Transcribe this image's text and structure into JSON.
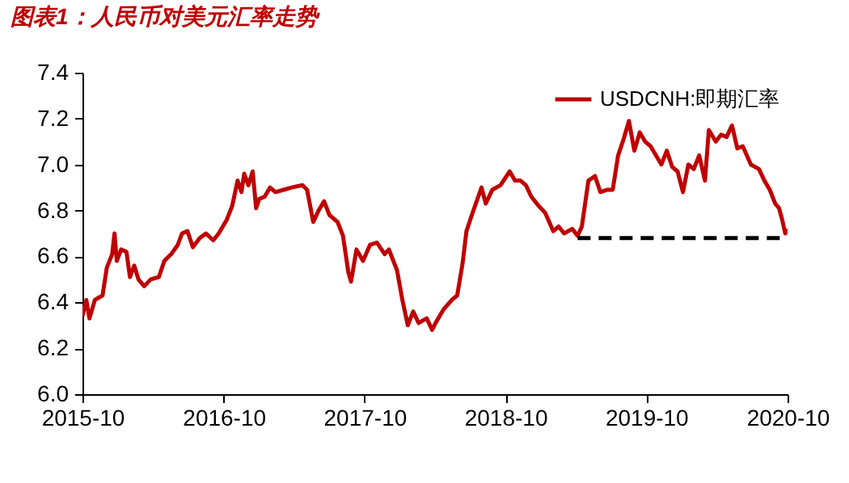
{
  "chart_data": {
    "type": "line",
    "title": "图表1：人民币对美元汇率走势",
    "x": [
      "2015-10-01",
      "2015-10-11",
      "2015-10-19",
      "2015-11-02",
      "2015-11-22",
      "2015-12-03",
      "2015-12-17",
      "2015-12-23",
      "2015-12-29",
      "2016-01-09",
      "2016-01-23",
      "2016-02-01",
      "2016-02-12",
      "2016-02-23",
      "2016-03-09",
      "2016-03-26",
      "2016-04-16",
      "2016-04-30",
      "2016-05-18",
      "2016-06-04",
      "2016-06-15",
      "2016-06-29",
      "2016-07-13",
      "2016-07-31",
      "2016-08-16",
      "2016-09-04",
      "2016-09-18",
      "2016-10-09",
      "2016-10-23",
      "2016-11-06",
      "2016-11-16",
      "2016-11-23",
      "2016-12-04",
      "2016-12-15",
      "2016-12-24",
      "2017-01-01",
      "2017-01-15",
      "2017-01-29",
      "2017-02-12",
      "2017-03-05",
      "2017-03-26",
      "2017-04-23",
      "2017-05-05",
      "2017-05-21",
      "2017-06-04",
      "2017-06-18",
      "2017-07-02",
      "2017-07-23",
      "2017-08-06",
      "2017-08-20",
      "2017-08-27",
      "2017-09-10",
      "2017-09-27",
      "2017-10-15",
      "2017-11-02",
      "2017-11-22",
      "2017-12-03",
      "2017-12-24",
      "2018-01-07",
      "2018-01-21",
      "2018-02-04",
      "2018-02-18",
      "2018-03-11",
      "2018-03-25",
      "2018-04-03",
      "2018-04-24",
      "2018-05-15",
      "2018-05-29",
      "2018-06-12",
      "2018-06-22",
      "2018-07-10",
      "2018-07-31",
      "2018-08-11",
      "2018-08-28",
      "2018-09-18",
      "2018-10-12",
      "2018-10-26",
      "2018-11-09",
      "2018-11-23",
      "2018-12-07",
      "2018-12-26",
      "2019-01-12",
      "2019-02-02",
      "2019-02-16",
      "2019-03-02",
      "2019-03-23",
      "2019-04-06",
      "2019-04-17",
      "2019-05-04",
      "2019-05-21",
      "2019-06-04",
      "2019-06-22",
      "2019-07-06",
      "2019-07-20",
      "2019-08-03",
      "2019-08-17",
      "2019-08-31",
      "2019-09-14",
      "2019-09-28",
      "2019-10-12",
      "2019-10-26",
      "2019-11-09",
      "2019-11-23",
      "2019-12-07",
      "2019-12-21",
      "2020-01-04",
      "2020-01-18",
      "2020-02-01",
      "2020-02-15",
      "2020-03-01",
      "2020-03-11",
      "2020-03-29",
      "2020-04-12",
      "2020-04-26",
      "2020-05-10",
      "2020-05-24",
      "2020-06-07",
      "2020-06-28",
      "2020-07-19",
      "2020-08-02",
      "2020-08-16",
      "2020-08-30",
      "2020-09-09",
      "2020-09-17",
      "2020-09-25",
      "2020-09-30"
    ],
    "series": [
      {
        "name": "USDCNH:即期汇率",
        "color": "#c00000",
        "values": [
          6.34,
          6.41,
          6.33,
          6.41,
          6.43,
          6.55,
          6.61,
          6.7,
          6.58,
          6.63,
          6.62,
          6.51,
          6.56,
          6.5,
          6.47,
          6.5,
          6.51,
          6.58,
          6.61,
          6.65,
          6.7,
          6.71,
          6.64,
          6.68,
          6.7,
          6.67,
          6.7,
          6.76,
          6.82,
          6.93,
          6.88,
          6.96,
          6.91,
          6.97,
          6.81,
          6.85,
          6.86,
          6.9,
          6.88,
          6.89,
          6.9,
          6.91,
          6.89,
          6.75,
          6.8,
          6.84,
          6.78,
          6.75,
          6.69,
          6.53,
          6.49,
          6.63,
          6.58,
          6.65,
          6.66,
          6.61,
          6.63,
          6.54,
          6.41,
          6.3,
          6.36,
          6.31,
          6.33,
          6.28,
          6.31,
          6.37,
          6.41,
          6.43,
          6.57,
          6.71,
          6.8,
          6.9,
          6.83,
          6.89,
          6.91,
          6.97,
          6.93,
          6.93,
          6.91,
          6.86,
          6.82,
          6.79,
          6.71,
          6.73,
          6.7,
          6.72,
          6.69,
          6.73,
          6.93,
          6.95,
          6.88,
          6.89,
          6.89,
          7.04,
          7.11,
          7.19,
          7.06,
          7.14,
          7.1,
          7.08,
          7.04,
          7.0,
          7.06,
          6.99,
          6.97,
          6.88,
          7.0,
          6.98,
          7.04,
          6.93,
          7.15,
          7.1,
          7.13,
          7.12,
          7.17,
          7.07,
          7.08,
          7.0,
          6.98,
          6.93,
          6.89,
          6.83,
          6.81,
          6.76,
          6.7,
          6.72
        ]
      },
      {
        "color": "#000000",
        "line_style": "dashed",
        "x": [
          "2019-04-06",
          "2020-10-01"
        ],
        "values": [
          6.68,
          6.68
        ]
      }
    ],
    "xlim": [
      "2015-10-01",
      "2020-10-01"
    ],
    "xticks": [
      "2015-10",
      "2016-10",
      "2017-10",
      "2018-10",
      "2019-10",
      "2020-10"
    ],
    "ylim": [
      6.0,
      7.4
    ],
    "yticks": [
      {
        "value": 6.0,
        "label": "6.0"
      },
      {
        "value": 6.2,
        "label": "6.2"
      },
      {
        "value": 6.4,
        "label": "6.4"
      },
      {
        "value": 6.6,
        "label": "6.6"
      },
      {
        "value": 6.8,
        "label": "6.8"
      },
      {
        "value": 7.0,
        "label": "7.0"
      },
      {
        "value": 7.2,
        "label": "7.2"
      },
      {
        "value": 7.4,
        "label": "7.4"
      }
    ],
    "grid": false,
    "legend": "top right",
    "marker": "none"
  }
}
